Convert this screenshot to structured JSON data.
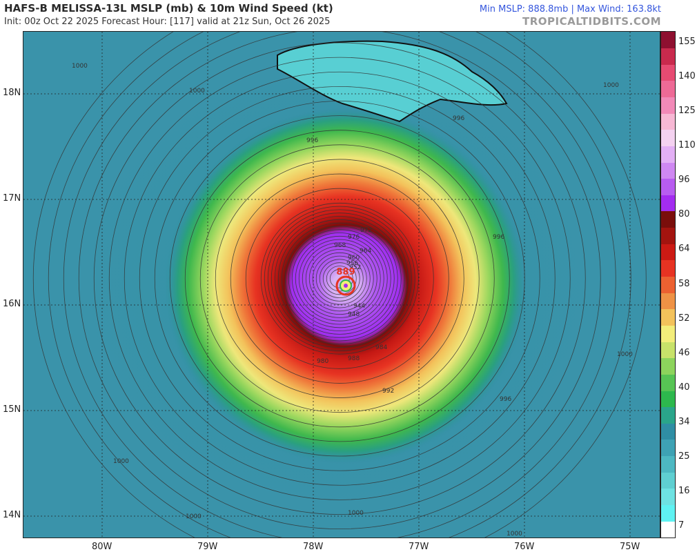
{
  "header": {
    "title": "HAFS-B MELISSA-13L MSLP (mb) & 10m Wind Speed (kt)",
    "subtitle": "Init: 00z Oct 22 2025   Forecast Hour: [117]   valid at 21z Sun, Oct 26 2025",
    "stats": "Min MSLP: 888.8mb | Max Wind: 163.8kt",
    "brand": "TROPICALTIDBITS.COM"
  },
  "storm": {
    "name": "MELISSA",
    "center_lon": -77.75,
    "center_lat": 16.25,
    "center_label": "889"
  },
  "lat_labels": [
    "18N",
    "17N",
    "16N",
    "15N",
    "14N"
  ],
  "lon_labels": [
    "80W",
    "79W",
    "78W",
    "77W",
    "76W",
    "75W"
  ],
  "isobar_labels": [
    "1000",
    "1000",
    "1000",
    "1000",
    "1000",
    "1000",
    "1000",
    "1000",
    "996",
    "996",
    "996",
    "996",
    "992",
    "988",
    "984",
    "980",
    "976",
    "972",
    "968",
    "964",
    "960",
    "956",
    "952",
    "948",
    "944"
  ],
  "colorbar": {
    "unit": "kt",
    "tick_labels": [
      "155",
      "140",
      "125",
      "110",
      "96",
      "80",
      "64",
      "58",
      "52",
      "46",
      "40",
      "34",
      "25",
      "16",
      "7"
    ],
    "colors": [
      "#ffffff",
      "#5ff2f2",
      "#6ee2e2",
      "#5fcfd1",
      "#4db8c2",
      "#3ea2b4",
      "#2f8ea4",
      "#2aa58a",
      "#2db84d",
      "#57c454",
      "#8dd45c",
      "#c8e26a",
      "#f3ed7a",
      "#f3c25b",
      "#ef9245",
      "#ec6131",
      "#e73322",
      "#cc1a14",
      "#a3140f",
      "#7a0e0b",
      "#a32cf0",
      "#b85cf0",
      "#cf88f2",
      "#e3b0f5",
      "#f4d2f0",
      "#f7b8d4",
      "#f28ab8",
      "#ee6a96",
      "#e64b72",
      "#c92a4d",
      "#8e1030"
    ]
  }
}
